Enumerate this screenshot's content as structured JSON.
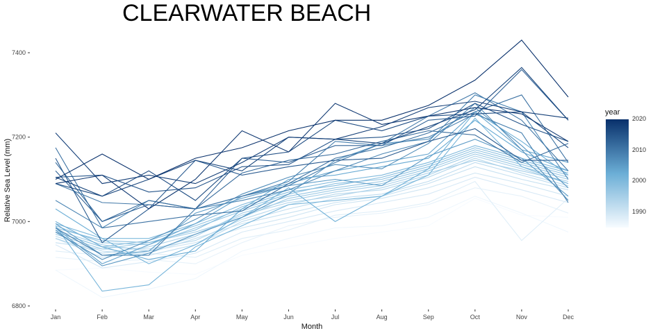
{
  "chart_data": {
    "type": "line",
    "title": "CLEARWATER BEACH",
    "xlabel": "Month",
    "ylabel": "Relative Sea Level (mm)",
    "categories": [
      "Jan",
      "Feb",
      "Mar",
      "Apr",
      "May",
      "Jun",
      "Jul",
      "Aug",
      "Sep",
      "Oct",
      "Nov",
      "Dec"
    ],
    "ylim": [
      6800,
      7430
    ],
    "yticks": [
      6800,
      7000,
      7200,
      7400
    ],
    "grid": false,
    "legend": {
      "title": "year",
      "placement": "right",
      "ticks": [
        1990,
        2000,
        2010,
        2020
      ],
      "range": [
        1985,
        2020
      ]
    },
    "color_scale": {
      "low": "#f7fbff",
      "high": "#08306b"
    },
    "series": [
      {
        "year": 1985,
        "values": [
          6885,
          6890,
          6880,
          6875,
          6920,
          6940,
          6960,
          6975,
          6990,
          7055,
          7015,
          7010
        ]
      },
      {
        "year": 1986,
        "values": [
          6885,
          6820,
          6840,
          6865,
          6930,
          6960,
          6985,
          6990,
          7010,
          7060,
          7020,
          6975
        ]
      },
      {
        "year": 1987,
        "values": [
          6915,
          6905,
          6910,
          6900,
          6950,
          6990,
          7010,
          7020,
          7040,
          7080,
          7060,
          7020
        ]
      },
      {
        "year": 1988,
        "values": [
          6930,
          6920,
          6925,
          6915,
          6960,
          6980,
          7015,
          7025,
          7045,
          7095,
          6955,
          7055
        ]
      },
      {
        "year": 1989,
        "values": [
          6945,
          6890,
          6905,
          6925,
          6975,
          7000,
          7025,
          7045,
          7065,
          7105,
          7075,
          7045
        ]
      },
      {
        "year": 1990,
        "values": [
          6960,
          6915,
          6930,
          6950,
          6985,
          7010,
          7040,
          7055,
          7080,
          7115,
          7090,
          7060
        ]
      },
      {
        "year": 1991,
        "values": [
          6950,
          6935,
          6925,
          6960,
          6995,
          7020,
          7045,
          7060,
          7090,
          7130,
          7100,
          7075
        ]
      },
      {
        "year": 1992,
        "values": [
          6965,
          6930,
          6920,
          6945,
          7000,
          7030,
          7055,
          7065,
          7095,
          7140,
          7110,
          7080
        ]
      },
      {
        "year": 1993,
        "values": [
          6975,
          6940,
          6935,
          6955,
          7005,
          7040,
          7065,
          7075,
          7105,
          7150,
          7115,
          7085
        ]
      },
      {
        "year": 1994,
        "values": [
          6960,
          6925,
          6940,
          6970,
          7015,
          7045,
          7060,
          7080,
          7110,
          7155,
          7125,
          7090
        ]
      },
      {
        "year": 1995,
        "values": [
          6980,
          6945,
          6930,
          6965,
          7020,
          7050,
          7070,
          7085,
          7115,
          7145,
          7120,
          7095
        ]
      },
      {
        "year": 1996,
        "values": [
          6970,
          6935,
          6950,
          6975,
          7010,
          7055,
          7075,
          7090,
          7120,
          7160,
          7130,
          7100
        ]
      },
      {
        "year": 1997,
        "values": [
          6990,
          6950,
          6945,
          6985,
          7025,
          7060,
          7080,
          7095,
          7125,
          7165,
          7135,
          7105
        ]
      },
      {
        "year": 1998,
        "values": [
          6975,
          6940,
          6955,
          6990,
          7030,
          7065,
          7090,
          7100,
          7130,
          7170,
          7140,
          7110
        ]
      },
      {
        "year": 1999,
        "values": [
          6985,
          6955,
          6950,
          6980,
          7035,
          7070,
          7085,
          7105,
          7135,
          7175,
          7145,
          7115
        ]
      },
      {
        "year": 2000,
        "values": [
          6995,
          6960,
          6960,
          6995,
          7040,
          7075,
          7095,
          7110,
          7140,
          7180,
          7150,
          7120
        ]
      },
      {
        "year": 2001,
        "values": [
          6990,
          6835,
          6850,
          6940,
          6990,
          7040,
          7050,
          7060,
          7110,
          7245,
          7130,
          7090
        ]
      },
      {
        "year": 2002,
        "values": [
          7030,
          6960,
          6900,
          6945,
          7010,
          7080,
          7000,
          7060,
          7125,
          7260,
          7190,
          7110
        ]
      },
      {
        "year": 2003,
        "values": [
          7000,
          6940,
          6910,
          6930,
          7030,
          7100,
          7110,
          7130,
          7150,
          7240,
          7165,
          7120
        ]
      },
      {
        "year": 2004,
        "values": [
          6985,
          6900,
          6945,
          6995,
          7060,
          7090,
          7120,
          7140,
          7160,
          7260,
          7170,
          7140
        ]
      },
      {
        "year": 2005,
        "values": [
          6995,
          6920,
          6930,
          7020,
          7055,
          7085,
          7100,
          7085,
          7155,
          7195,
          7150,
          7060
        ]
      },
      {
        "year": 2006,
        "values": [
          6980,
          6895,
          6925,
          6970,
          7010,
          7065,
          7145,
          7185,
          7195,
          7270,
          7180,
          7080
        ]
      },
      {
        "year": 2007,
        "values": [
          6975,
          6910,
          6955,
          7005,
          7065,
          7105,
          7135,
          7125,
          7185,
          7280,
          7170,
          7050
        ]
      },
      {
        "year": 2008,
        "values": [
          7050,
          6985,
          7050,
          7030,
          7050,
          7075,
          7120,
          7160,
          7190,
          7300,
          7260,
          7100
        ]
      },
      {
        "year": 2009,
        "values": [
          6985,
          6920,
          6920,
          7030,
          7060,
          7095,
          7190,
          7180,
          7200,
          7255,
          7210,
          7045
        ]
      },
      {
        "year": 2010,
        "values": [
          7090,
          7045,
          7040,
          7030,
          7060,
          7085,
          7140,
          7185,
          7250,
          7305,
          7240,
          7120
        ]
      },
      {
        "year": 2011,
        "values": [
          7175,
          6985,
          7000,
          7015,
          7025,
          7090,
          7150,
          7175,
          7210,
          7260,
          7300,
          7140
        ]
      },
      {
        "year": 2012,
        "values": [
          7140,
          7000,
          7050,
          7030,
          7115,
          7145,
          7160,
          7190,
          7215,
          7205,
          7140,
          7185
        ]
      },
      {
        "year": 2013,
        "values": [
          7120,
          7000,
          7040,
          7030,
          7150,
          7140,
          7180,
          7180,
          7240,
          7250,
          7360,
          7240
        ]
      },
      {
        "year": 2014,
        "values": [
          7150,
          6950,
          7030,
          7145,
          7110,
          7130,
          7145,
          7150,
          7190,
          7220,
          7145,
          7145
        ]
      },
      {
        "year": 2015,
        "values": [
          7105,
          7110,
          7070,
          7080,
          7130,
          7135,
          7195,
          7200,
          7220,
          7280,
          7230,
          7190
        ]
      },
      {
        "year": 2016,
        "values": [
          7090,
          7060,
          7120,
          7050,
          7150,
          7165,
          7240,
          7215,
          7250,
          7255,
          7260,
          7175
        ]
      },
      {
        "year": 2017,
        "values": [
          7105,
          7060,
          7100,
          7145,
          7120,
          7200,
          7195,
          7185,
          7225,
          7265,
          7365,
          7240
        ]
      },
      {
        "year": 2018,
        "values": [
          7210,
          7090,
          7110,
          7090,
          7140,
          7200,
          7195,
          7225,
          7270,
          7285,
          7260,
          7245
        ]
      },
      {
        "year": 2019,
        "values": [
          7090,
          7110,
          7030,
          7100,
          7215,
          7165,
          7280,
          7230,
          7250,
          7270,
          7255,
          7190
        ]
      },
      {
        "year": 2020,
        "values": [
          7100,
          7160,
          7100,
          7150,
          7175,
          7215,
          7240,
          7240,
          7275,
          7335,
          7430,
          7295
        ]
      }
    ]
  }
}
